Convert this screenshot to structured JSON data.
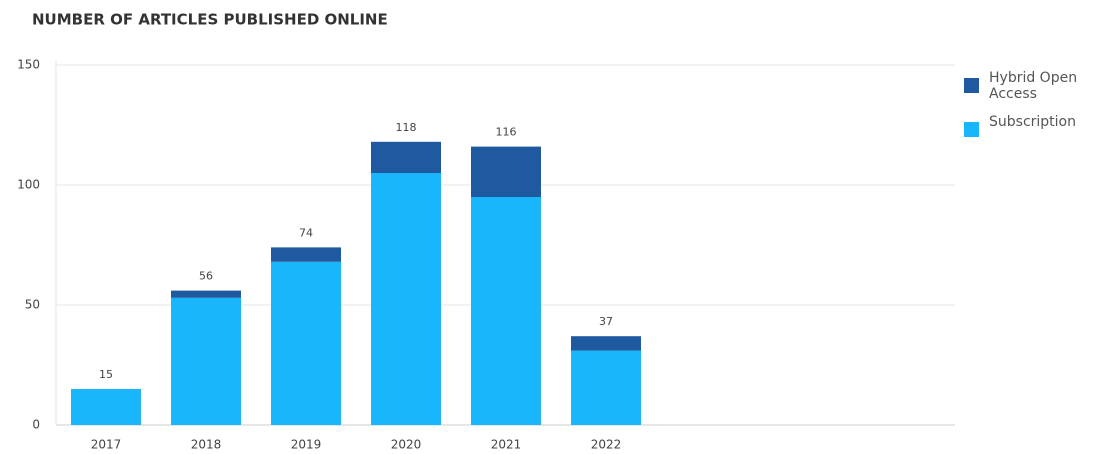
{
  "chart_data": {
    "type": "stacked_bar",
    "title": "NUMBER OF ARTICLES PUBLISHED ONLINE",
    "categories": [
      "2017",
      "2018",
      "2019",
      "2020",
      "2021",
      "2022"
    ],
    "series": [
      {
        "name": "Subscription",
        "color": "#1ab6fb",
        "values": [
          15,
          53,
          68,
          105,
          95,
          31
        ]
      },
      {
        "name": "Hybrid Open Access",
        "color": "#1f5aa0",
        "values": [
          0,
          3,
          6,
          13,
          21,
          6
        ]
      }
    ],
    "total_labels": [
      15,
      56,
      74,
      118,
      116,
      37
    ],
    "ylim": [
      0,
      150
    ],
    "yticks": [
      0,
      50,
      100,
      150
    ],
    "grid": true,
    "legend": "right"
  }
}
